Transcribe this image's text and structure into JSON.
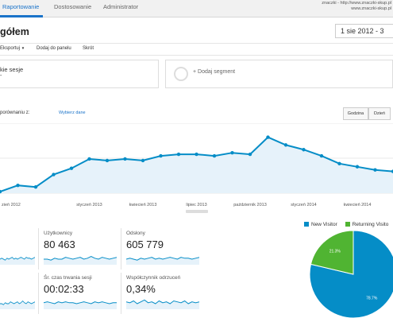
{
  "nav": {
    "tabs": [
      "Raportowanie",
      "Dostosowanie",
      "Administrator"
    ],
    "account_line1": "znaczki - http://www.znaczki-skup.pl",
    "account_line2": "www.znaczki-skup.pl"
  },
  "header": {
    "title": "gółem",
    "date_range": "1 sie 2012 - 3"
  },
  "toolbar": {
    "export": "Eksportuj",
    "add_to_dashboard": "Dodaj do panelu",
    "shortcut": "Skrót"
  },
  "segments": {
    "segment1_line1": "kie sesje",
    "segment1_line2": "-",
    "add_segment": "+ Dodaj segment"
  },
  "graph": {
    "compare_label": "porównaniu z:",
    "select_data": "Wybierz dane",
    "periods": [
      "Godzina",
      "Dzień"
    ]
  },
  "chart_data": {
    "type": "area",
    "x_tick_labels": [
      "zień 2012",
      "styczeń 2013",
      "kwiecień 2013",
      "lipiec 2013",
      "październik 2013",
      "styczeń 2014",
      "kwiecień 2014"
    ],
    "x": [
      "2012-08",
      "2012-09",
      "2012-10",
      "2012-11",
      "2012-12",
      "2013-01",
      "2013-02",
      "2013-03",
      "2013-04",
      "2013-05",
      "2013-06",
      "2013-07",
      "2013-08",
      "2013-09",
      "2013-10",
      "2013-11",
      "2013-12",
      "2014-01",
      "2014-02",
      "2014-03",
      "2014-04",
      "2014-05",
      "2014-06"
    ],
    "series": [
      {
        "values": [
          1,
          5,
          4,
          12,
          16,
          22,
          21,
          22,
          21,
          24,
          25,
          25,
          24,
          26,
          25,
          36,
          31,
          28,
          24,
          19,
          17,
          15,
          14
        ]
      }
    ],
    "ylim": [
      0,
      45
    ],
    "grid": true,
    "color": "#058dc7"
  },
  "metrics": [
    {
      "label": "Użytkownicy",
      "value": "80 463",
      "spark": [
        6,
        6,
        5,
        7,
        6,
        6,
        8,
        7,
        6,
        7,
        8,
        6,
        7,
        9,
        7,
        6,
        8,
        7,
        6,
        7,
        8
      ]
    },
    {
      "label": "Odsłony",
      "value": "605 779",
      "spark": [
        6,
        7,
        6,
        5,
        7,
        6,
        7,
        8,
        6,
        7,
        6,
        7,
        8,
        7,
        6,
        8,
        7,
        7,
        6,
        7,
        8
      ]
    },
    {
      "label": "Śr. czas trwania sesji",
      "value": "00:02:33",
      "spark": [
        7,
        8,
        7,
        6,
        8,
        7,
        8,
        7,
        7,
        6,
        7,
        8,
        7,
        6,
        8,
        7,
        8,
        7,
        6,
        7,
        7
      ]
    },
    {
      "label": "Współczynnik odrzuceń",
      "value": "0,34%",
      "spark": [
        8,
        7,
        9,
        6,
        8,
        10,
        7,
        8,
        6,
        9,
        7,
        8,
        6,
        9,
        8,
        7,
        9,
        6,
        8,
        7,
        8
      ]
    }
  ],
  "pie_data": {
    "type": "pie",
    "legend": [
      "New Visitor",
      "Returning Visito"
    ],
    "values": [
      78.7,
      21.3
    ],
    "labels": [
      "78.7%",
      "21.3%"
    ],
    "colors": [
      "#058dc7",
      "#50b432"
    ]
  }
}
